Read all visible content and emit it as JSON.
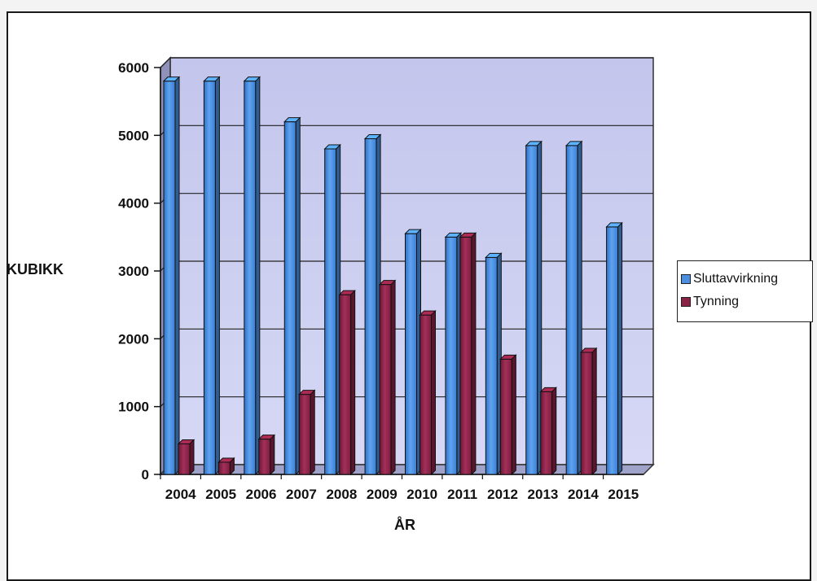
{
  "colors": {
    "series_1": "#4a8fe0",
    "series_2": "#8b2245",
    "plot_background": "#cbcdf0"
  },
  "chart_data": {
    "type": "bar",
    "categories": [
      "2004",
      "2005",
      "2006",
      "2007",
      "2008",
      "2009",
      "2010",
      "2011",
      "2012",
      "2013",
      "2014",
      "2015"
    ],
    "series": [
      {
        "name": "Sluttavvirkning",
        "values": [
          5800,
          5800,
          5800,
          5200,
          4800,
          4950,
          3550,
          3500,
          3200,
          4850,
          4850,
          3650
        ]
      },
      {
        "name": "Tynning",
        "values": [
          450,
          180,
          520,
          1180,
          2650,
          2800,
          2350,
          3500,
          1700,
          1220,
          1800,
          0
        ]
      }
    ],
    "xlabel": "ÅR",
    "ylabel": "KUBIKK",
    "ylim": [
      0,
      6000
    ],
    "yticks": [
      "0",
      "1000",
      "2000",
      "3000",
      "4000",
      "5000",
      "6000"
    ],
    "grid": true,
    "style": "3d",
    "legend_position": "right"
  }
}
